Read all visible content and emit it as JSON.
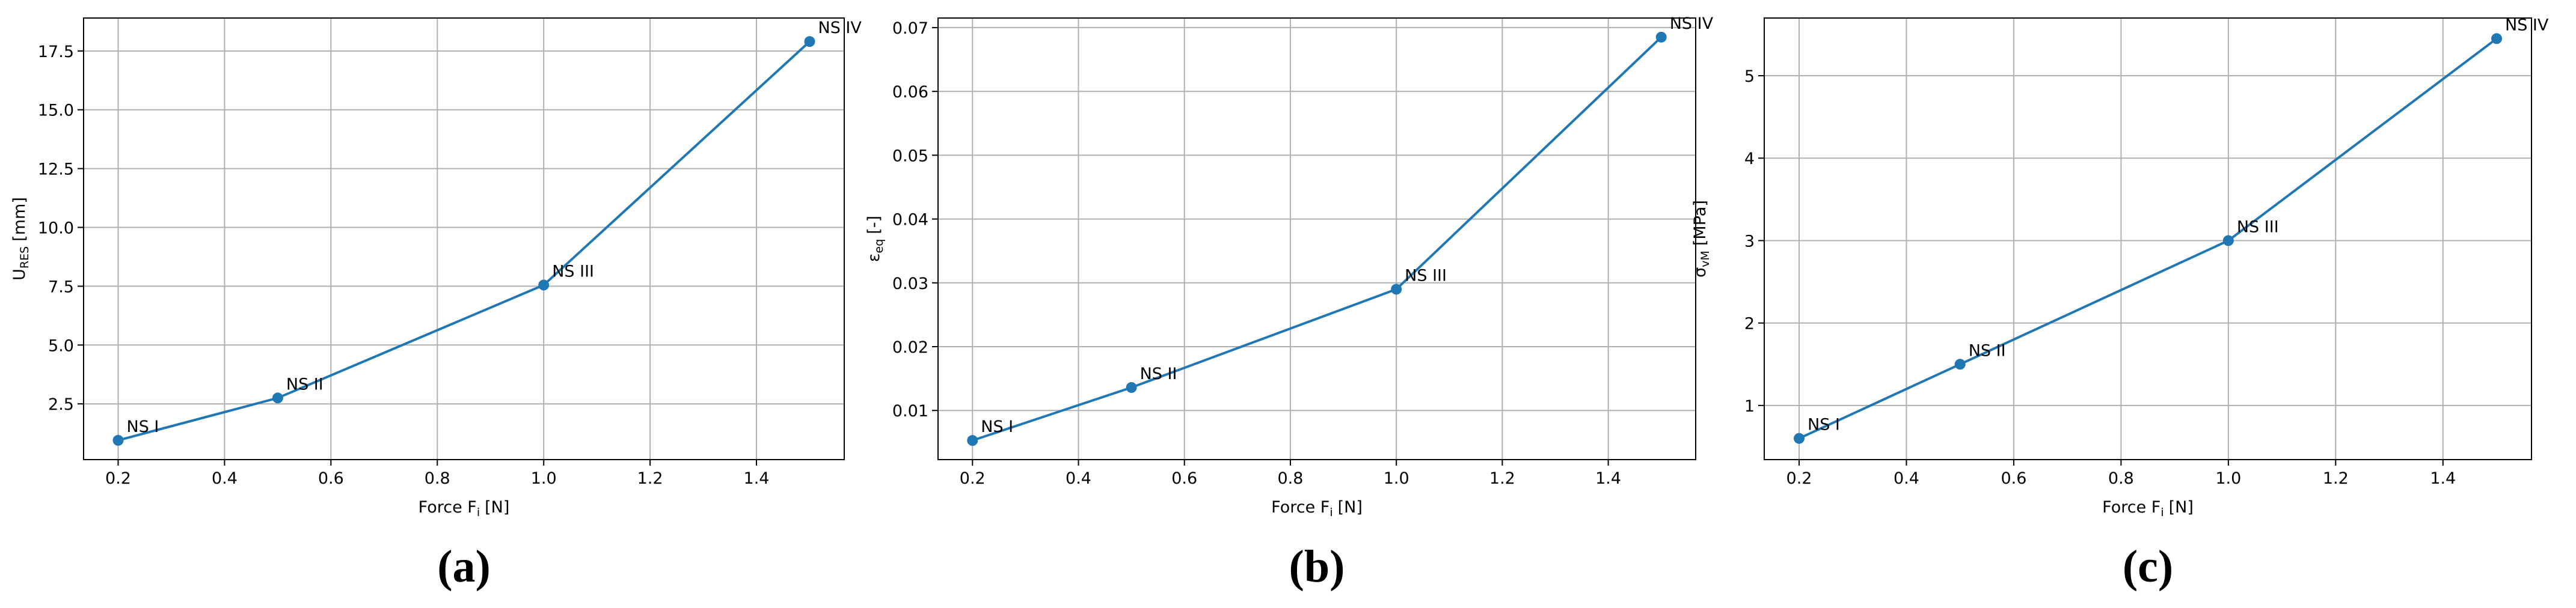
{
  "chart_data": [
    {
      "type": "line",
      "caption": "(a)",
      "color": "#1f77b4",
      "grid": true,
      "x": [
        0.2,
        0.5,
        1.0,
        1.5
      ],
      "series": [
        {
          "values": [
            0.95,
            2.75,
            7.55,
            17.9
          ]
        }
      ],
      "point_labels": [
        "NS I",
        "NS II",
        "NS III",
        "NS IV"
      ],
      "x_label": {
        "text": "Force F",
        "subscript": "i",
        "unit": "[N]"
      },
      "y_label": {
        "text": "U",
        "subscript": "RES",
        "unit": "[mm]"
      },
      "xlim": [
        0.135,
        1.565
      ],
      "xticks": [
        0.2,
        0.4,
        0.6,
        0.8,
        {
          "value": 1,
          "label": "1.0"
        },
        1.2,
        1.4
      ],
      "ylim": [
        0.13,
        18.9
      ],
      "yticks": [
        2.5,
        {
          "value": 5,
          "label": "5.0"
        },
        7.5,
        {
          "value": 10,
          "label": "10.0"
        },
        12.5,
        {
          "value": 15,
          "label": "15.0"
        },
        17.5
      ]
    },
    {
      "type": "line",
      "caption": "(b)",
      "color": "#1f77b4",
      "grid": true,
      "x": [
        0.2,
        0.5,
        1.0,
        1.5
      ],
      "series": [
        {
          "values": [
            0.0053,
            0.0136,
            0.029,
            0.0685
          ]
        }
      ],
      "point_labels": [
        "NS I",
        "NS II",
        "NS III",
        "NS IV"
      ],
      "x_label": {
        "text": "Force F",
        "subscript": "i",
        "unit": "[N]"
      },
      "y_label": {
        "text": "ε",
        "subscript": "eq",
        "unit": "[-]"
      },
      "xlim": [
        0.135,
        1.565
      ],
      "xticks": [
        0.2,
        0.4,
        0.6,
        0.8,
        {
          "value": 1,
          "label": "1.0"
        },
        1.2,
        1.4
      ],
      "ylim": [
        0.0023,
        0.0715
      ],
      "yticks": [
        0.01,
        0.02,
        0.03,
        0.04,
        0.05,
        0.06,
        0.07
      ]
    },
    {
      "type": "line",
      "caption": "(c)",
      "color": "#1f77b4",
      "grid": true,
      "x": [
        0.2,
        0.5,
        1.0,
        1.5
      ],
      "series": [
        {
          "values": [
            0.6,
            1.5,
            3.0,
            5.45
          ]
        }
      ],
      "point_labels": [
        "NS I",
        "NS II",
        "NS III",
        "NS IV"
      ],
      "x_label": {
        "text": "Force F",
        "subscript": "i",
        "unit": "[N]"
      },
      "y_label": {
        "text": "σ",
        "subscript": "vM",
        "unit": "[MPa]"
      },
      "xlim": [
        0.135,
        1.565
      ],
      "xticks": [
        0.2,
        0.4,
        0.6,
        0.8,
        {
          "value": 1,
          "label": "1.0"
        },
        1.2,
        1.4
      ],
      "ylim": [
        0.343,
        5.7
      ],
      "yticks": [
        1,
        2,
        3,
        4,
        5
      ]
    }
  ]
}
